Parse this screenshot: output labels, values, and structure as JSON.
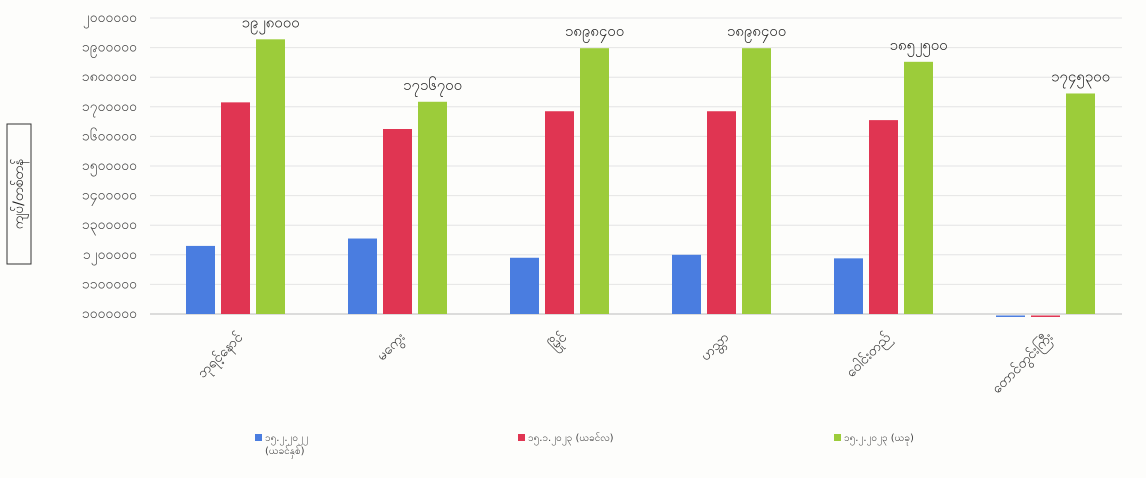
{
  "chart_data": {
    "type": "bar",
    "ylabel": "ကျပ်/တစ်တန်",
    "y_tick_labels": [
      "၁၀၀၀၀၀၀",
      "၁၁၀၀၀၀၀",
      "၁၂၀၀၀၀၀",
      "၁၃၀၀၀၀၀",
      "၁၄၀၀၀၀၀",
      "၁၅၀၀၀၀၀",
      "၁၆၀၀၀၀၀",
      "၁၇၀၀၀၀၀",
      "၁၈၀၀၀၀၀",
      "၁၉၀၀၀၀၀",
      "၂၀၀၀၀၀၀"
    ],
    "ylim": [
      1000000,
      2000000
    ],
    "categories": [
      "ဘုရင့်နောင်",
      "မကွေး",
      "မြိုင်",
      "ဟသ္တာ",
      "ဝေါင်းတည်",
      "တောင်တွင်းကြီး"
    ],
    "series": [
      {
        "name": "၁၅.၂.၂၀၂၂ (ယခင်နှစ်)",
        "color": "#4a7de0",
        "values": [
          1230000,
          1255000,
          1190000,
          1200000,
          1188000,
          995000
        ]
      },
      {
        "name": "၁၅.၁.၂၀၂၃ (ယခင်လ)",
        "color": "#e03552",
        "values": [
          1715000,
          1625000,
          1685000,
          1685000,
          1655000,
          995000
        ]
      },
      {
        "name": "၁၅.၂.၂၀၂၃ (ယခု)",
        "color": "#9ccc3a",
        "values": [
          1928000,
          1717000,
          1898000,
          1898000,
          1852000,
          1745000
        ]
      }
    ],
    "data_labels": [
      "၁၉၂၈၀၀၀",
      "၁၇၁၆၇၀၀",
      "၁၈၉၈၄၀၀",
      "၁၈၉၈၄၀၀",
      "၁၈၅၂၅၀၀",
      "၁၇၄၅၃၀၀"
    ],
    "grid": true,
    "legend_position": "bottom"
  }
}
